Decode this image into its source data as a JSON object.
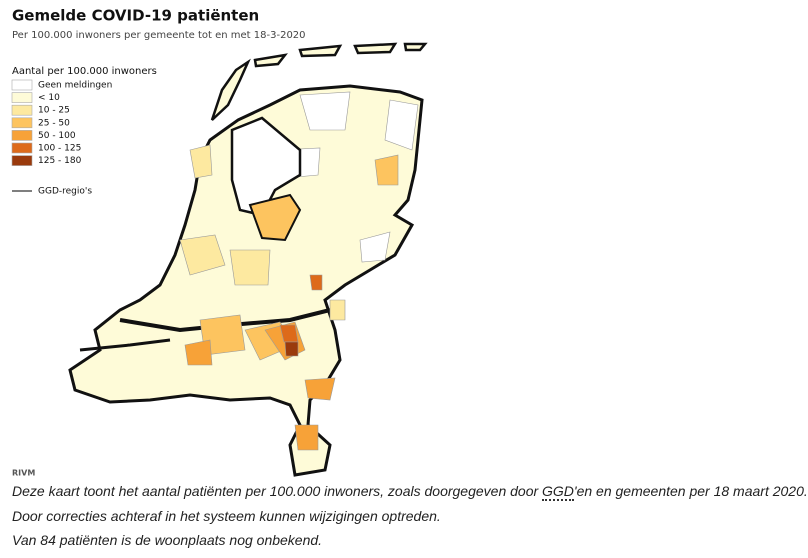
{
  "header": {
    "title": "Gemelde COVID-19 patiënten",
    "subtitle": "Per 100.000 inwoners per gemeente tot en met 18-3-2020"
  },
  "legend": {
    "title": "Aantal per 100.000 inwoners",
    "items": [
      {
        "label": "Geen meldingen",
        "color": "#ffffff"
      },
      {
        "label": "< 10",
        "color": "#fefbd8"
      },
      {
        "label": "10 - 25",
        "color": "#fde9a0"
      },
      {
        "label": "25 - 50",
        "color": "#fdc45f"
      },
      {
        "label": "50 - 100",
        "color": "#f7a238"
      },
      {
        "label": "100 - 125",
        "color": "#dd6a1a"
      },
      {
        "label": "125 - 180",
        "color": "#9a3a0c"
      }
    ],
    "line": "GGD-regio's"
  },
  "source": "RIVM",
  "caption": {
    "line1": {
      "before": "Deze kaart toont het aantal patiënten per 100.000 inwoners, zoals doorgegeven door ",
      "abbr": "GGD",
      "after": "'en en gemeenten per 18 maart 2020."
    },
    "line2": "Door correcties achteraf in het systeem kunnen wijzigingen optreden.",
    "line3": "Van 84 patiënten is de woonplaats nog onbekend."
  }
}
